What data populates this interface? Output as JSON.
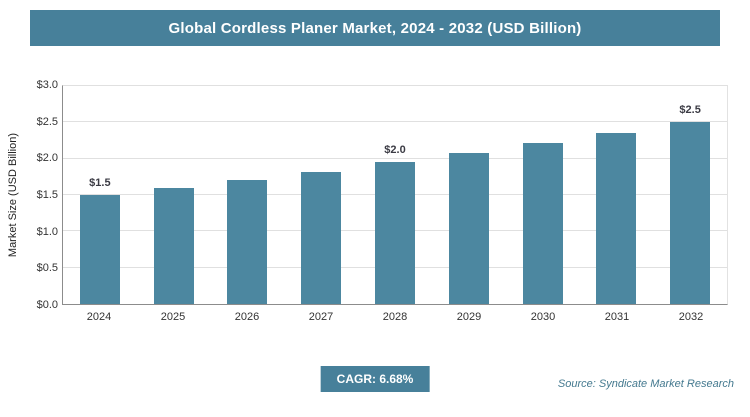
{
  "header": {
    "title": "Global Cordless Planer Market, 2024 - 2032 (USD Billion)"
  },
  "chart_data": {
    "type": "bar",
    "title": "Global Cordless Planer Market, 2024 - 2032 (USD Billion)",
    "categories": [
      "2024",
      "2025",
      "2026",
      "2027",
      "2028",
      "2029",
      "2030",
      "2031",
      "2032"
    ],
    "values": [
      1.5,
      1.6,
      1.71,
      1.82,
      1.95,
      2.08,
      2.22,
      2.36,
      2.5
    ],
    "bar_labels": [
      "$1.5",
      "",
      "",
      "",
      "$2.0",
      "",
      "",
      "",
      "$2.5"
    ],
    "xlabel": "",
    "ylabel": "Market Size (USD Billion)",
    "ylim": [
      0,
      3.0
    ],
    "ytick_step": 0.5,
    "yticks": [
      "$0.0",
      "$0.5",
      "$1.0",
      "$1.5",
      "$2.0",
      "$2.5",
      "$3.0"
    ],
    "grid": "horizontal",
    "legend_position": "none",
    "bar_color": "#4c87a0"
  },
  "footer": {
    "cagr": "CAGR: 6.68%",
    "source": "Source: Syndicate Market Research"
  },
  "colors": {
    "accent": "#47809a",
    "bar": "#4c87a0",
    "grid": "#e0e0e0"
  }
}
